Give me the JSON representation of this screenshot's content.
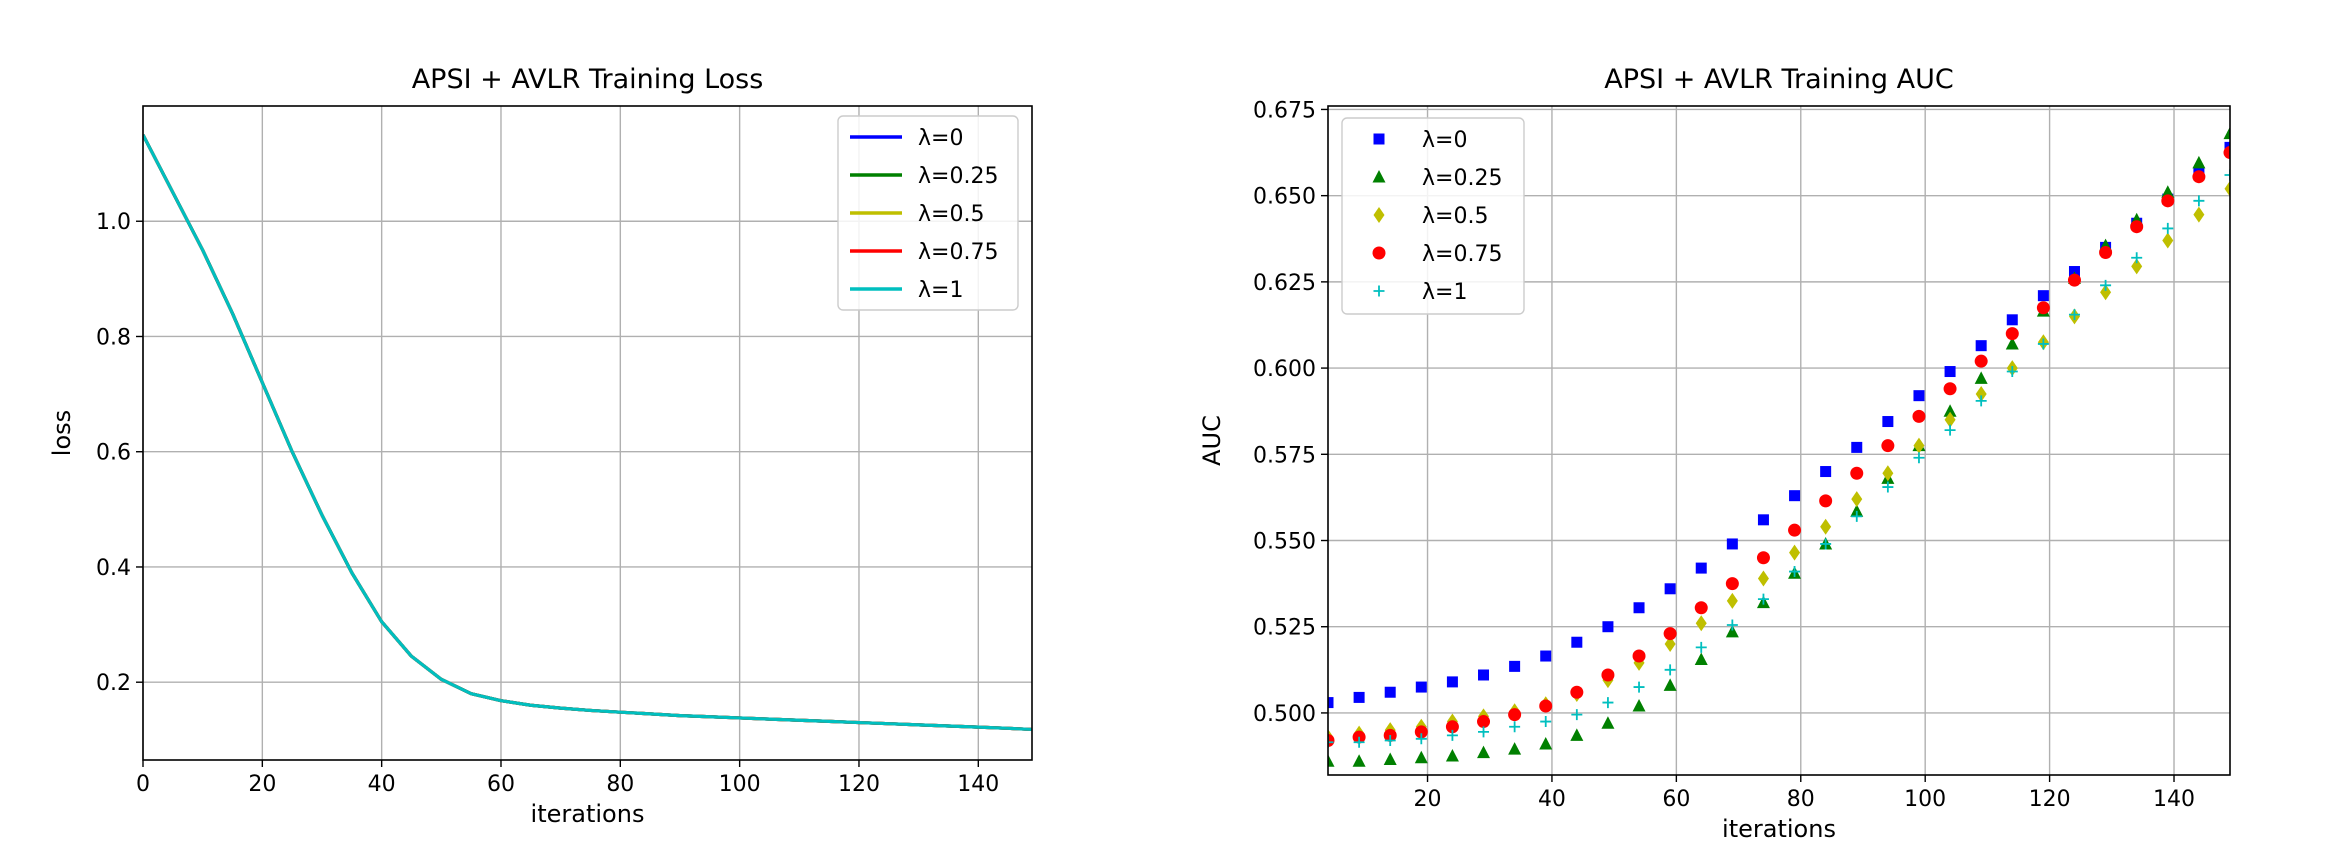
{
  "chart_data": [
    {
      "type": "line",
      "title": "APSI + AVLR Training Loss",
      "xlabel": "iterations",
      "ylabel": "loss",
      "xlim": [
        0,
        149
      ],
      "ylim": [
        0.065,
        1.2
      ],
      "xticks": [
        0,
        20,
        40,
        60,
        80,
        100,
        120,
        140
      ],
      "yticks": [
        0.2,
        0.4,
        0.6,
        0.8,
        1.0
      ],
      "ytick_labels": [
        "0.2",
        "0.4",
        "0.6",
        "0.8",
        "1.0"
      ],
      "grid": true,
      "legend": "top-right",
      "x": [
        0,
        5,
        10,
        15,
        20,
        25,
        30,
        35,
        40,
        45,
        50,
        55,
        60,
        65,
        70,
        75,
        80,
        85,
        90,
        95,
        100,
        105,
        110,
        115,
        120,
        125,
        130,
        135,
        140,
        145,
        149
      ],
      "series": [
        {
          "name": "λ=0",
          "color": "#0000ff",
          "values": [
            1.15,
            1.05,
            0.95,
            0.84,
            0.72,
            0.6,
            0.49,
            0.39,
            0.305,
            0.245,
            0.205,
            0.18,
            0.168,
            0.16,
            0.155,
            0.151,
            0.148,
            0.145,
            0.142,
            0.14,
            0.138,
            0.136,
            0.134,
            0.132,
            0.13,
            0.128,
            0.126,
            0.124,
            0.122,
            0.12,
            0.118
          ]
        },
        {
          "name": "λ=0.25",
          "color": "#008000",
          "values": [
            1.15,
            1.05,
            0.95,
            0.84,
            0.72,
            0.6,
            0.49,
            0.39,
            0.305,
            0.245,
            0.205,
            0.18,
            0.168,
            0.16,
            0.155,
            0.151,
            0.148,
            0.145,
            0.142,
            0.14,
            0.138,
            0.136,
            0.134,
            0.132,
            0.13,
            0.128,
            0.126,
            0.124,
            0.122,
            0.12,
            0.118
          ]
        },
        {
          "name": "λ=0.5",
          "color": "#bfbf00",
          "values": [
            1.15,
            1.05,
            0.95,
            0.84,
            0.72,
            0.6,
            0.49,
            0.39,
            0.305,
            0.245,
            0.205,
            0.18,
            0.168,
            0.16,
            0.155,
            0.151,
            0.148,
            0.145,
            0.142,
            0.14,
            0.138,
            0.136,
            0.134,
            0.132,
            0.13,
            0.128,
            0.126,
            0.124,
            0.122,
            0.12,
            0.118
          ]
        },
        {
          "name": "λ=0.75",
          "color": "#ff0000",
          "values": [
            1.15,
            1.05,
            0.95,
            0.84,
            0.72,
            0.6,
            0.49,
            0.39,
            0.305,
            0.245,
            0.205,
            0.18,
            0.168,
            0.16,
            0.155,
            0.151,
            0.148,
            0.145,
            0.142,
            0.14,
            0.138,
            0.136,
            0.134,
            0.132,
            0.13,
            0.128,
            0.126,
            0.124,
            0.122,
            0.12,
            0.118
          ]
        },
        {
          "name": "λ=1",
          "color": "#00bfbf",
          "values": [
            1.15,
            1.05,
            0.95,
            0.84,
            0.72,
            0.6,
            0.49,
            0.39,
            0.305,
            0.245,
            0.205,
            0.18,
            0.168,
            0.16,
            0.155,
            0.151,
            0.148,
            0.145,
            0.142,
            0.14,
            0.138,
            0.136,
            0.134,
            0.132,
            0.13,
            0.128,
            0.126,
            0.124,
            0.122,
            0.12,
            0.118
          ]
        }
      ]
    },
    {
      "type": "scatter",
      "title": "APSI + AVLR Training AUC",
      "xlabel": "iterations",
      "ylabel": "AUC",
      "xlim": [
        4,
        149
      ],
      "ylim": [
        0.482,
        0.676
      ],
      "xticks": [
        20,
        40,
        60,
        80,
        100,
        120,
        140
      ],
      "yticks": [
        0.5,
        0.525,
        0.55,
        0.575,
        0.6,
        0.625,
        0.65,
        0.675
      ],
      "ytick_labels": [
        "0.500",
        "0.525",
        "0.550",
        "0.575",
        "0.600",
        "0.625",
        "0.650",
        "0.675"
      ],
      "grid": true,
      "legend": "top-left",
      "x": [
        4,
        9,
        14,
        19,
        24,
        29,
        34,
        39,
        44,
        49,
        54,
        59,
        64,
        69,
        74,
        79,
        84,
        89,
        94,
        99,
        104,
        109,
        114,
        119,
        124,
        129,
        134,
        139,
        144,
        149
      ],
      "series": [
        {
          "name": "λ=0",
          "color": "#0000ff",
          "marker": "square",
          "values": [
            0.503,
            0.5045,
            0.506,
            0.5075,
            0.509,
            0.511,
            0.5135,
            0.5165,
            0.5205,
            0.525,
            0.5305,
            0.536,
            0.542,
            0.549,
            0.556,
            0.563,
            0.57,
            0.577,
            0.5845,
            0.592,
            0.599,
            0.6065,
            0.614,
            0.621,
            0.628,
            0.635,
            0.642,
            0.649,
            0.6565,
            0.664
          ]
        },
        {
          "name": "λ=0.25",
          "color": "#008000",
          "marker": "triangle",
          "values": [
            0.486,
            0.486,
            0.4865,
            0.487,
            0.4875,
            0.4885,
            0.4895,
            0.491,
            0.4935,
            0.497,
            0.502,
            0.508,
            0.5155,
            0.5235,
            0.532,
            0.5405,
            0.549,
            0.5585,
            0.568,
            0.5775,
            0.5875,
            0.597,
            0.607,
            0.6165,
            0.626,
            0.6355,
            0.643,
            0.651,
            0.6595,
            0.668
          ]
        },
        {
          "name": "λ=0.5",
          "color": "#bfbf00",
          "marker": "diamond",
          "values": [
            0.493,
            0.494,
            0.495,
            0.496,
            0.4975,
            0.499,
            0.5005,
            0.5025,
            0.5055,
            0.5095,
            0.5145,
            0.52,
            0.526,
            0.5325,
            0.539,
            0.5465,
            0.554,
            0.562,
            0.5695,
            0.5775,
            0.585,
            0.5925,
            0.6,
            0.6075,
            0.615,
            0.622,
            0.6295,
            0.637,
            0.6445,
            0.652
          ]
        },
        {
          "name": "λ=0.75",
          "color": "#ff0000",
          "marker": "circle",
          "values": [
            0.492,
            0.493,
            0.4935,
            0.4945,
            0.496,
            0.4975,
            0.4995,
            0.502,
            0.506,
            0.511,
            0.5165,
            0.523,
            0.5305,
            0.5375,
            0.545,
            0.553,
            0.5615,
            0.5695,
            0.5775,
            0.586,
            0.594,
            0.602,
            0.61,
            0.6175,
            0.6255,
            0.6335,
            0.641,
            0.6485,
            0.6555,
            0.6625
          ]
        },
        {
          "name": "λ=1",
          "color": "#00bfbf",
          "marker": "plus",
          "values": [
            0.4915,
            0.4915,
            0.492,
            0.4925,
            0.4935,
            0.4945,
            0.496,
            0.4975,
            0.4995,
            0.503,
            0.5075,
            0.5125,
            0.519,
            0.5255,
            0.533,
            0.541,
            0.549,
            0.557,
            0.5655,
            0.574,
            0.582,
            0.5905,
            0.599,
            0.607,
            0.6155,
            0.624,
            0.632,
            0.6405,
            0.6485,
            0.656
          ]
        }
      ]
    }
  ]
}
